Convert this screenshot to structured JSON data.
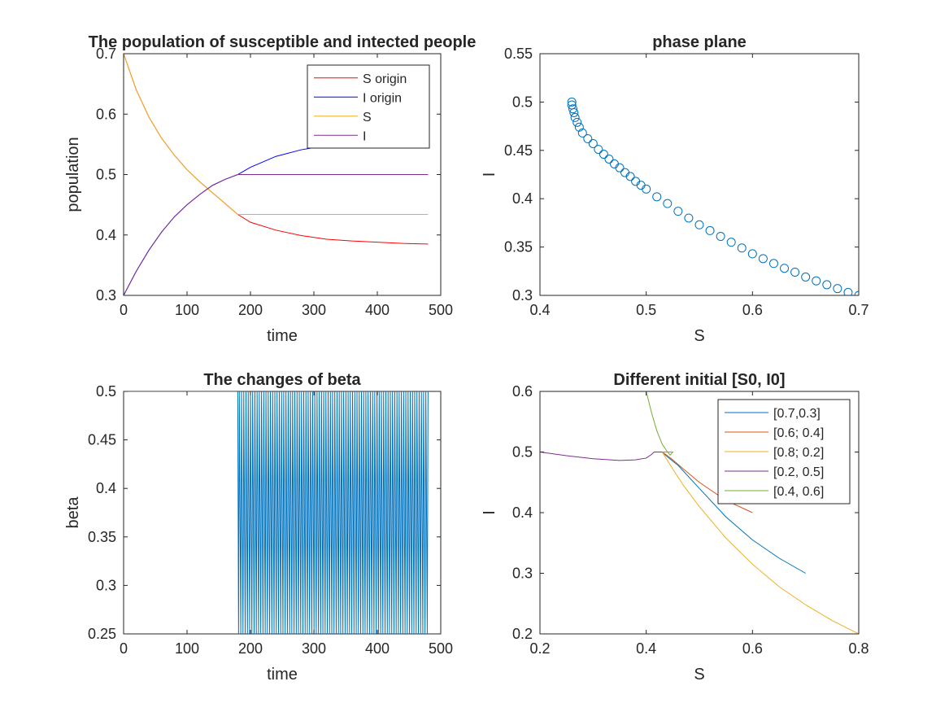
{
  "chart_data": [
    {
      "type": "line",
      "title": "The population of susceptible and intected people",
      "xlabel": "time",
      "ylabel": "population",
      "xlim": [
        0,
        500
      ],
      "ylim": [
        0.3,
        0.7
      ],
      "xticks": [
        "0",
        "100",
        "200",
        "300",
        "400",
        "500"
      ],
      "yticks": [
        "0.3",
        "0.4",
        "0.5",
        "0.6",
        "0.7"
      ],
      "legend_position": "top-right",
      "series": [
        {
          "name": "S origin",
          "color": "#ff0000",
          "x": [
            0,
            20,
            40,
            60,
            80,
            100,
            120,
            140,
            160,
            180,
            200,
            240,
            280,
            320,
            360,
            400,
            440,
            480
          ],
          "y": [
            0.7,
            0.64,
            0.595,
            0.56,
            0.532,
            0.508,
            0.488,
            0.47,
            0.452,
            0.434,
            0.421,
            0.408,
            0.399,
            0.393,
            0.39,
            0.388,
            0.386,
            0.385
          ]
        },
        {
          "name": "I origin",
          "color": "#0000ff",
          "x": [
            0,
            20,
            40,
            60,
            80,
            100,
            120,
            140,
            160,
            180,
            200,
            240,
            280,
            320,
            360,
            400,
            440,
            480
          ],
          "y": [
            0.3,
            0.34,
            0.375,
            0.405,
            0.43,
            0.45,
            0.467,
            0.482,
            0.492,
            0.5,
            0.512,
            0.53,
            0.541,
            0.548,
            0.553,
            0.557,
            0.56,
            0.562
          ]
        },
        {
          "name": "S",
          "color": "#edb120",
          "x": [
            0,
            20,
            40,
            60,
            80,
            100,
            120,
            140,
            160,
            180,
            200,
            250,
            300,
            350,
            400,
            450,
            480
          ],
          "y": [
            0.7,
            0.64,
            0.595,
            0.56,
            0.532,
            0.508,
            0.488,
            0.47,
            0.452,
            0.434,
            0.434,
            0.434,
            0.434,
            0.434,
            0.434,
            0.434,
            0.434
          ]
        },
        {
          "name": "I",
          "color": "#7e2f8e",
          "x": [
            0,
            20,
            40,
            60,
            80,
            100,
            120,
            140,
            160,
            180,
            200,
            250,
            300,
            350,
            400,
            450,
            480
          ],
          "y": [
            0.3,
            0.34,
            0.375,
            0.405,
            0.43,
            0.45,
            0.467,
            0.482,
            0.492,
            0.5,
            0.5,
            0.5,
            0.5,
            0.5,
            0.5,
            0.5,
            0.5
          ]
        }
      ]
    },
    {
      "type": "scatter",
      "title": "phase plane",
      "xlabel": "S",
      "ylabel": "I",
      "xlim": [
        0.4,
        0.7
      ],
      "ylim": [
        0.3,
        0.55
      ],
      "xticks": [
        "0.4",
        "0.5",
        "0.6",
        "0.7"
      ],
      "yticks": [
        "0.3",
        "0.35",
        "0.4",
        "0.45",
        "0.5",
        "0.55"
      ],
      "marker": "circle",
      "series": [
        {
          "color": "#0072bd",
          "x": [
            0.7,
            0.69,
            0.68,
            0.67,
            0.66,
            0.65,
            0.64,
            0.63,
            0.62,
            0.61,
            0.6,
            0.59,
            0.58,
            0.57,
            0.56,
            0.55,
            0.54,
            0.53,
            0.52,
            0.51,
            0.5,
            0.495,
            0.49,
            0.485,
            0.48,
            0.475,
            0.47,
            0.465,
            0.46,
            0.455,
            0.45,
            0.445,
            0.44,
            0.437,
            0.435,
            0.433,
            0.432,
            0.431,
            0.43,
            0.43
          ],
          "y": [
            0.3,
            0.303,
            0.307,
            0.311,
            0.315,
            0.319,
            0.324,
            0.328,
            0.333,
            0.338,
            0.343,
            0.349,
            0.355,
            0.361,
            0.367,
            0.373,
            0.38,
            0.387,
            0.395,
            0.402,
            0.41,
            0.414,
            0.418,
            0.423,
            0.427,
            0.432,
            0.436,
            0.441,
            0.446,
            0.451,
            0.457,
            0.462,
            0.468,
            0.474,
            0.479,
            0.484,
            0.489,
            0.493,
            0.497,
            0.5
          ]
        }
      ]
    },
    {
      "type": "line",
      "title": "The changes of beta",
      "xlabel": "time",
      "ylabel": "beta",
      "xlim": [
        0,
        500
      ],
      "ylim": [
        0.25,
        0.5
      ],
      "xticks": [
        "0",
        "100",
        "200",
        "300",
        "400",
        "500"
      ],
      "yticks": [
        "0.25",
        "0.3",
        "0.35",
        "0.4",
        "0.45",
        "0.5"
      ],
      "series": [
        {
          "color": "#0072bd",
          "baseline": {
            "x": [
              0,
              180
            ],
            "y": [
              0.5,
              0.5
            ]
          },
          "oscillation": {
            "x_start": 180,
            "x_end": 480,
            "period": 3.5,
            "high": 0.5,
            "low": 0.25
          }
        }
      ]
    },
    {
      "type": "line",
      "title": "Different initial [S0, I0]",
      "xlabel": "S",
      "ylabel": "I",
      "xlim": [
        0.2,
        0.8
      ],
      "ylim": [
        0.2,
        0.6
      ],
      "xticks": [
        "0.2",
        "0.4",
        "0.6",
        "0.8"
      ],
      "yticks": [
        "0.2",
        "0.3",
        "0.4",
        "0.5",
        "0.6"
      ],
      "legend_position": "top-right",
      "series": [
        {
          "name": "[0.7,0.3]",
          "color": "#0072bd",
          "x": [
            0.7,
            0.65,
            0.6,
            0.55,
            0.5,
            0.46,
            0.44,
            0.43
          ],
          "y": [
            0.3,
            0.325,
            0.355,
            0.393,
            0.44,
            0.478,
            0.492,
            0.5
          ]
        },
        {
          "name": "[0.6; 0.4]",
          "color": "#d95319",
          "x": [
            0.6,
            0.55,
            0.5,
            0.47,
            0.45,
            0.44,
            0.43
          ],
          "y": [
            0.4,
            0.42,
            0.45,
            0.472,
            0.487,
            0.494,
            0.5
          ]
        },
        {
          "name": "[0.8; 0.2]",
          "color": "#edb120",
          "x": [
            0.8,
            0.75,
            0.7,
            0.65,
            0.6,
            0.55,
            0.5,
            0.47,
            0.45,
            0.43
          ],
          "y": [
            0.2,
            0.222,
            0.248,
            0.278,
            0.315,
            0.358,
            0.41,
            0.445,
            0.472,
            0.5
          ]
        },
        {
          "name": "[0.2, 0.5]",
          "color": "#7e2f8e",
          "x": [
            0.2,
            0.25,
            0.3,
            0.35,
            0.38,
            0.4,
            0.41,
            0.415,
            0.42,
            0.43,
            0.44,
            0.45
          ],
          "y": [
            0.5,
            0.494,
            0.489,
            0.486,
            0.487,
            0.49,
            0.496,
            0.5,
            0.5,
            0.5,
            0.5,
            0.5
          ]
        },
        {
          "name": "[0.4, 0.6]",
          "color": "#77ac30",
          "x": [
            0.4,
            0.41,
            0.42,
            0.43,
            0.44,
            0.445,
            0.45,
            0.44,
            0.43
          ],
          "y": [
            0.6,
            0.565,
            0.535,
            0.513,
            0.5,
            0.495,
            0.5,
            0.5,
            0.5
          ]
        }
      ]
    }
  ]
}
